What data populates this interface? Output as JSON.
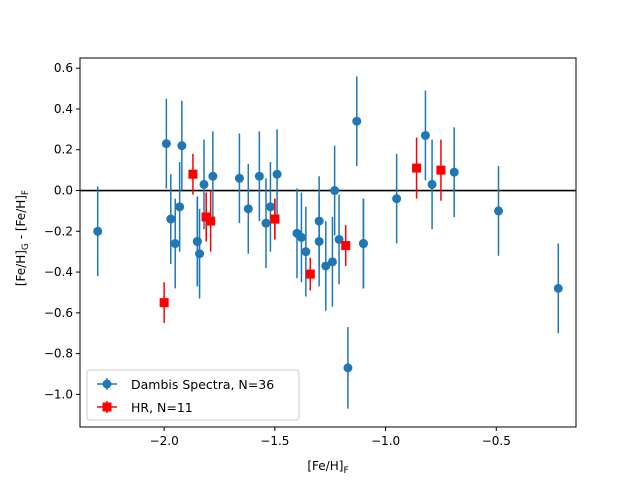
{
  "chart_data": {
    "type": "scatter",
    "title": "",
    "xlabel": "[Fe/H]F",
    "ylabel": "[Fe/H]G - [Fe/H]F",
    "xlim": [
      -2.38,
      -0.14
    ],
    "ylim": [
      -1.16,
      0.65
    ],
    "x_ticks": [
      -2.0,
      -1.5,
      -1.0,
      -0.5
    ],
    "x_tick_labels": [
      "−2.0",
      "−1.5",
      "−1.0",
      "−0.5"
    ],
    "y_ticks": [
      -1.0,
      -0.8,
      -0.6,
      -0.4,
      -0.2,
      0.0,
      0.2,
      0.4,
      0.6
    ],
    "y_tick_labels": [
      "−1.0",
      "−0.8",
      "−0.6",
      "−0.4",
      "−0.2",
      "0.0",
      "0.2",
      "0.4",
      "0.6"
    ],
    "reference_line_y": 0.0,
    "grid": false,
    "legend_position": "lower-left",
    "series": [
      {
        "name": "Dambis Spectra, N=36",
        "color": "#1f77b4",
        "marker": "circle",
        "x": [
          -2.3,
          -1.99,
          -1.97,
          -1.95,
          -1.93,
          -1.92,
          -1.85,
          -1.84,
          -1.82,
          -1.78,
          -1.66,
          -1.62,
          -1.57,
          -1.54,
          -1.52,
          -1.49,
          -1.4,
          -1.38,
          -1.36,
          -1.3,
          -1.3,
          -1.27,
          -1.24,
          -1.23,
          -1.21,
          -1.17,
          -1.13,
          -1.1,
          -1.1,
          -0.95,
          -0.82,
          -0.79,
          -0.69,
          -0.49,
          -0.22,
          -1.85
        ],
        "y": [
          -0.2,
          0.23,
          -0.14,
          -0.26,
          -0.08,
          0.22,
          -0.25,
          -0.31,
          0.03,
          0.07,
          0.06,
          -0.09,
          0.07,
          -0.16,
          -0.08,
          0.08,
          -0.21,
          -0.23,
          -0.3,
          -0.15,
          -0.25,
          -0.37,
          -0.35,
          0.0,
          -0.24,
          -0.87,
          0.34,
          -0.26,
          -0.26,
          -0.04,
          0.27,
          0.03,
          0.09,
          -0.1,
          -0.48,
          -0.25
        ],
        "yerr": [
          0.22,
          0.22,
          0.22,
          0.22,
          0.22,
          0.22,
          0.22,
          0.22,
          0.22,
          0.22,
          0.22,
          0.22,
          0.22,
          0.22,
          0.22,
          0.22,
          0.22,
          0.22,
          0.22,
          0.22,
          0.22,
          0.22,
          0.22,
          0.22,
          0.22,
          0.2,
          0.22,
          0.22,
          0.22,
          0.22,
          0.22,
          0.22,
          0.22,
          0.22,
          0.22,
          0.22
        ]
      },
      {
        "name": "HR, N=11",
        "color": "#ff0000",
        "marker": "square",
        "x": [
          -2.0,
          -1.87,
          -1.81,
          -1.79,
          -1.5,
          -1.34,
          -1.18,
          -0.86,
          -0.75,
          -1.5,
          -1.81
        ],
        "y": [
          -0.55,
          0.08,
          -0.13,
          -0.15,
          -0.14,
          -0.41,
          -0.27,
          0.11,
          0.1,
          -0.14,
          -0.13
        ],
        "yerr": [
          0.1,
          0.1,
          0.12,
          0.15,
          0.1,
          0.08,
          0.1,
          0.15,
          0.15,
          0.1,
          0.12
        ]
      }
    ]
  }
}
